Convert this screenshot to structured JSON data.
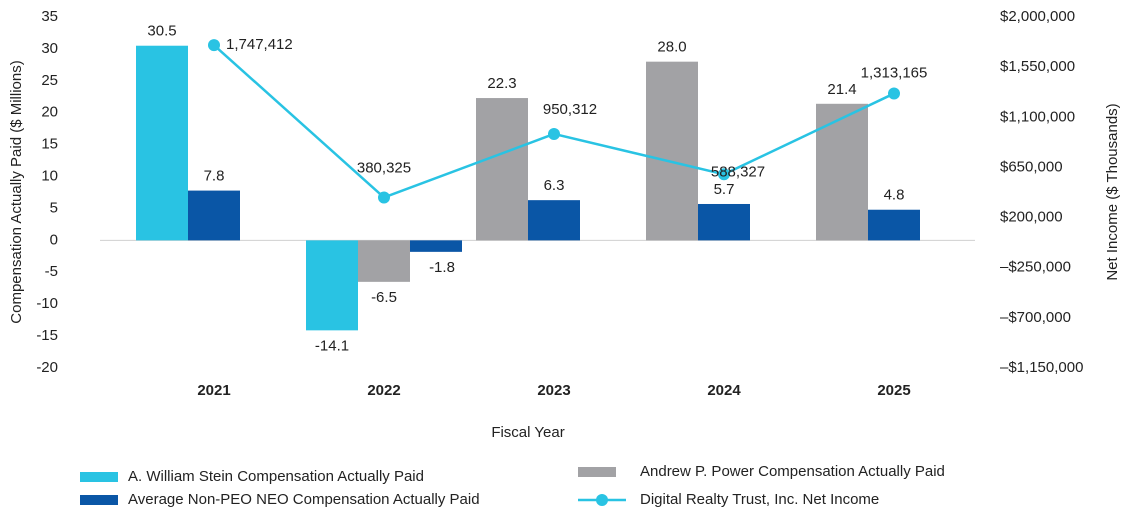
{
  "chart_data": {
    "type": "bar",
    "categories": [
      "2021",
      "2022",
      "2023",
      "2024",
      "2025"
    ],
    "x_label": "Fiscal Year",
    "y_label": "Compensation Actually Paid ($ Millions)",
    "y2_label": "Net Income ($ Thousands)",
    "ylim": [
      -20,
      35
    ],
    "yticks": [
      -20,
      -15,
      -10,
      -5,
      0,
      5,
      10,
      15,
      20,
      25,
      30,
      35
    ],
    "y2lim": [
      -1150000,
      2000000
    ],
    "y2ticks": [
      {
        "value": -1150000,
        "label": "–$1,150,000"
      },
      {
        "value": -700000,
        "label": "–$700,000"
      },
      {
        "value": -250000,
        "label": "–$250,000"
      },
      {
        "value": 200000,
        "label": "$200,000"
      },
      {
        "value": 650000,
        "label": "$650,000"
      },
      {
        "value": 1100000,
        "label": "$1,100,000"
      },
      {
        "value": 1550000,
        "label": "$1,550,000"
      },
      {
        "value": 2000000,
        "label": "$2,000,000"
      }
    ],
    "series": [
      {
        "name": "A. William Stein Compensation Actually Paid",
        "color": "#29c3e3",
        "values": [
          30.5,
          -14.1,
          null,
          null,
          null
        ]
      },
      {
        "name": "Andrew P. Power Compensation Actually Paid",
        "color": "#a2a2a5",
        "values": [
          null,
          -6.5,
          22.3,
          28,
          21.4
        ],
        "value_labels": [
          null,
          "-6.5",
          "22.3",
          "28.0",
          "21.4"
        ]
      },
      {
        "name": "Average Non-PEO NEO Compensation Actually Paid",
        "color": "#0a56a6",
        "values": [
          7.8,
          -1.8,
          6.3,
          5.7,
          4.8
        ]
      },
      {
        "name": "Digital Realty Trust, Inc. Net Income",
        "color": "#29c3e3",
        "type": "line",
        "axis": "y2",
        "values": [
          1747412,
          380325,
          950312,
          588327,
          1313165
        ],
        "value_labels": [
          "1,747,412",
          "380,325",
          "950,312",
          "588,327",
          "1,313,165"
        ]
      }
    ]
  }
}
